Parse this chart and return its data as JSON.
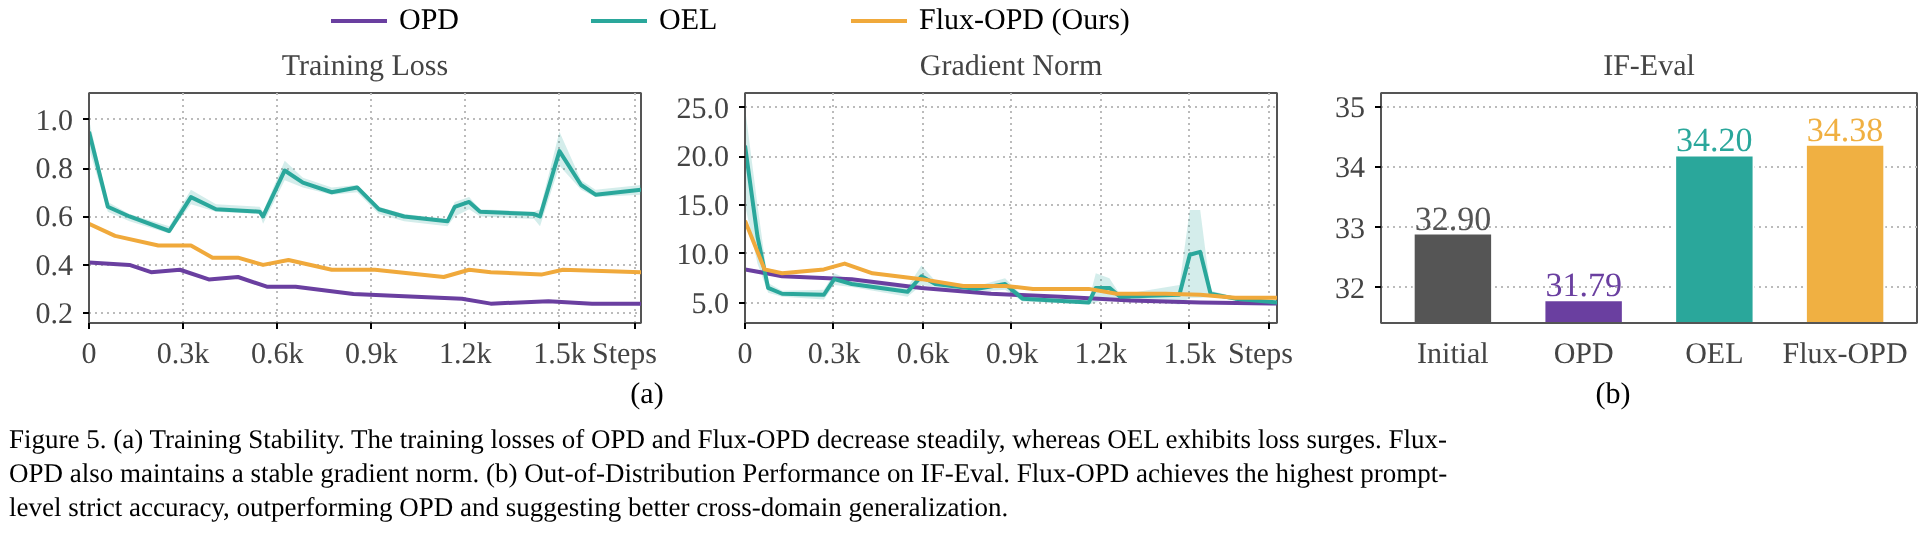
{
  "chart_data": [
    {
      "type": "line",
      "title": "Training Loss",
      "legend": "top",
      "grid": true,
      "line_style": "solid",
      "marker": "none",
      "xlim": [
        0,
        1760
      ],
      "xticks": [
        0,
        {
          "value": 300,
          "label": "0.3k"
        },
        {
          "value": 600,
          "label": "0.6k"
        },
        {
          "value": 900,
          "label": "0.9k"
        },
        {
          "value": 1200,
          "label": "1.2k"
        },
        {
          "value": 1500,
          "label": "1.5k"
        },
        {
          "value": 1742,
          "label": "Steps"
        }
      ],
      "ylim": [
        0.16,
        1.11
      ],
      "yticks": [
        0.2,
        0.4,
        0.6,
        0.8,
        {
          "value": 1.0,
          "label": "1.0"
        }
      ],
      "annotations": [
        "(a)",
        "Figure 5. (a) Training Stability. The training losses of OPD and Flux-OPD decrease steadily, whereas OEL exhibits loss surges. Flux-",
        "OPD also maintains a stable gradient norm. (b) Out-of-Distribution Performance on IF-Eval. Flux-OPD achieves the highest prompt-",
        "level strict accuracy, outperforming OPD and suggesting better cross-domain generalization."
      ],
      "series": [
        {
          "name": "OPD",
          "color": "#6a3fa0",
          "x": [
            0,
            129,
            198,
            290,
            382,
            475,
            567,
            659,
            843,
            1005,
            1189,
            1281,
            1465,
            1604,
            1760
          ],
          "values": [
            0.41,
            0.4,
            0.37,
            0.38,
            0.34,
            0.35,
            0.31,
            0.31,
            0.28,
            0.27,
            0.26,
            0.24,
            0.25,
            0.24,
            0.24
          ]
        },
        {
          "name": "OEL",
          "color": "#2aa79b",
          "x": [
            0,
            60,
            129,
            256,
            325,
            405,
            544,
            555,
            624,
            682,
            774,
            855,
            924,
            1005,
            1143,
            1166,
            1212,
            1247,
            1419,
            1438,
            1500,
            1569,
            1615,
            1760
          ],
          "values": [
            0.95,
            0.64,
            0.6,
            0.54,
            0.68,
            0.63,
            0.62,
            0.6,
            0.79,
            0.74,
            0.7,
            0.72,
            0.63,
            0.6,
            0.58,
            0.64,
            0.66,
            0.62,
            0.61,
            0.6,
            0.87,
            0.73,
            0.69,
            0.71
          ],
          "lower": [
            0.88,
            0.62,
            0.58,
            0.53,
            0.65,
            0.62,
            0.61,
            0.57,
            0.75,
            0.72,
            0.69,
            0.7,
            0.61,
            0.58,
            0.56,
            0.6,
            0.63,
            0.6,
            0.59,
            0.56,
            0.81,
            0.71,
            0.68,
            0.69
          ],
          "upper": [
            1.0,
            0.66,
            0.61,
            0.56,
            0.71,
            0.65,
            0.64,
            0.62,
            0.83,
            0.76,
            0.72,
            0.73,
            0.64,
            0.61,
            0.59,
            0.66,
            0.68,
            0.63,
            0.62,
            0.63,
            0.95,
            0.75,
            0.71,
            0.73
          ]
        },
        {
          "name": "Flux-OPD (Ours)",
          "color": "#f0a93b",
          "x": [
            0,
            83,
            221,
            325,
            394,
            475,
            555,
            636,
            774,
            912,
            1131,
            1212,
            1281,
            1442,
            1511,
            1760
          ],
          "values": [
            0.57,
            0.52,
            0.48,
            0.48,
            0.43,
            0.43,
            0.4,
            0.42,
            0.38,
            0.38,
            0.35,
            0.38,
            0.37,
            0.36,
            0.38,
            0.37
          ]
        }
      ]
    },
    {
      "type": "line",
      "title": "Gradient Norm",
      "grid": true,
      "line_style": "solid",
      "marker": "none",
      "xlim": [
        0,
        1794
      ],
      "xticks": [
        0,
        {
          "value": 300,
          "label": "0.3k"
        },
        {
          "value": 600,
          "label": "0.6k"
        },
        {
          "value": 900,
          "label": "0.9k"
        },
        {
          "value": 1200,
          "label": "1.2k"
        },
        {
          "value": 1500,
          "label": "1.5k"
        },
        {
          "value": 1770,
          "label": "Steps"
        }
      ],
      "ylim": [
        2.9,
        26.5
      ],
      "yticks": [
        {
          "value": 5,
          "label": "5.0"
        },
        {
          "value": 10,
          "label": "10.0"
        },
        {
          "value": 15,
          "label": "15.0"
        },
        {
          "value": 20,
          "label": "20.0"
        },
        {
          "value": 25,
          "label": "25.0"
        }
      ],
      "series": [
        {
          "color": "#6a3fa0",
          "x": [
            0,
            125,
            360,
            595,
            830,
            1065,
            1300,
            1535,
            1794
          ],
          "values": [
            8.4,
            7.7,
            7.4,
            6.5,
            5.9,
            5.6,
            5.2,
            5.0,
            4.9
          ]
        },
        {
          "color": "#2aa79b",
          "x": [
            0,
            42,
            78,
            125,
            266,
            301,
            360,
            548,
            595,
            642,
            783,
            877,
            936,
            1159,
            1183,
            1229,
            1265,
            1465,
            1500,
            1535,
            1570,
            1653,
            1794
          ],
          "values": [
            21.1,
            11.8,
            6.5,
            5.9,
            5.8,
            7.4,
            6.9,
            6.1,
            7.7,
            6.9,
            6.4,
            6.9,
            5.4,
            5.0,
            6.5,
            6.5,
            5.6,
            5.8,
            9.9,
            10.2,
            5.9,
            5.4,
            5.0
          ],
          "lower": [
            15.0,
            9.0,
            6.0,
            5.6,
            5.3,
            6.8,
            6.6,
            5.6,
            6.8,
            6.6,
            6.1,
            6.3,
            5.1,
            4.8,
            5.0,
            5.5,
            5.4,
            4.8,
            5.5,
            5.5,
            5.6,
            5.2,
            4.8
          ],
          "upper": [
            25.0,
            15.0,
            7.0,
            6.2,
            6.3,
            8.0,
            7.2,
            6.6,
            8.8,
            7.2,
            6.7,
            7.5,
            5.7,
            5.2,
            8.0,
            7.5,
            5.8,
            6.8,
            14.5,
            14.5,
            6.2,
            5.6,
            5.2
          ]
        },
        {
          "color": "#f0a93b",
          "x": [
            0,
            66,
            125,
            266,
            336,
            430,
            595,
            736,
            877,
            971,
            1159,
            1253,
            1418,
            1535,
            1653,
            1794
          ],
          "values": [
            13.4,
            8.4,
            8.0,
            8.4,
            9.0,
            8.0,
            7.4,
            6.7,
            6.7,
            6.4,
            6.4,
            5.9,
            5.9,
            5.8,
            5.5,
            5.5
          ]
        }
      ]
    },
    {
      "type": "bar",
      "title": "IF-Eval",
      "categories": [
        "Initial",
        "OPD",
        "OEL",
        "Flux-OPD"
      ],
      "values": [
        32.9,
        31.79,
        34.2,
        34.38
      ],
      "colors": [
        "#555555",
        "#6a3fa0",
        "#2aa79b",
        "#f0b042"
      ],
      "ylim": [
        31.41,
        35.24
      ],
      "yticks": [
        32,
        33,
        34,
        35
      ],
      "grid": "y",
      "value_labels": [
        "32.90",
        "31.79",
        "34.20",
        "34.38"
      ],
      "annotations": [
        "(b)"
      ]
    }
  ]
}
